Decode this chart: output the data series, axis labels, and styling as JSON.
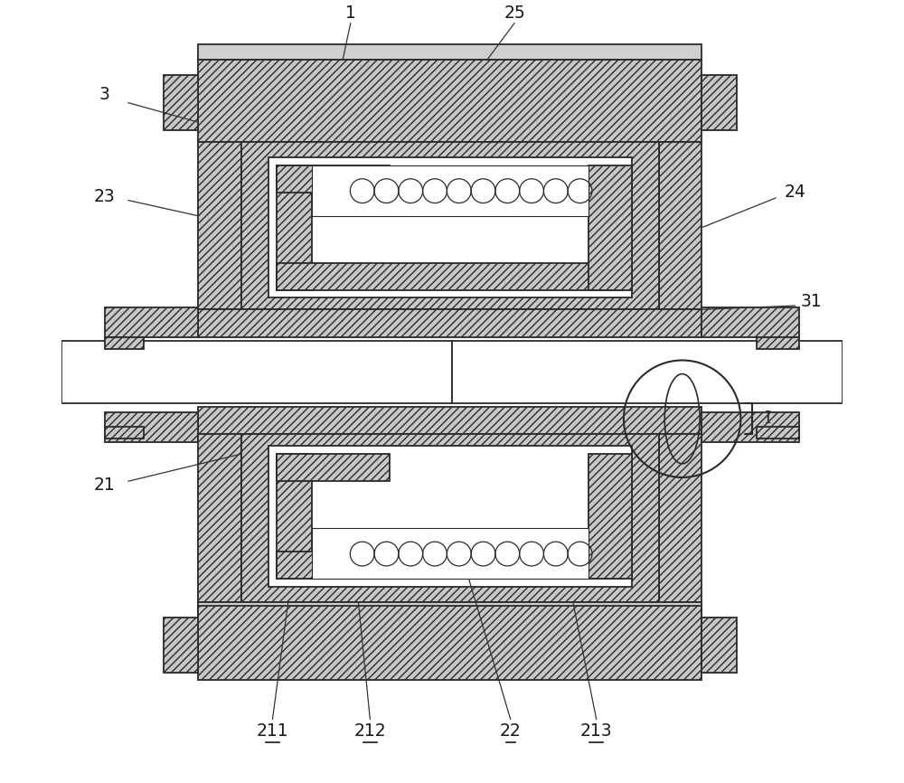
{
  "line_color": "#2a2a2a",
  "hatch_fc": "#c8c8c8",
  "white": "#ffffff",
  "light_gray": "#e8e8e8"
}
